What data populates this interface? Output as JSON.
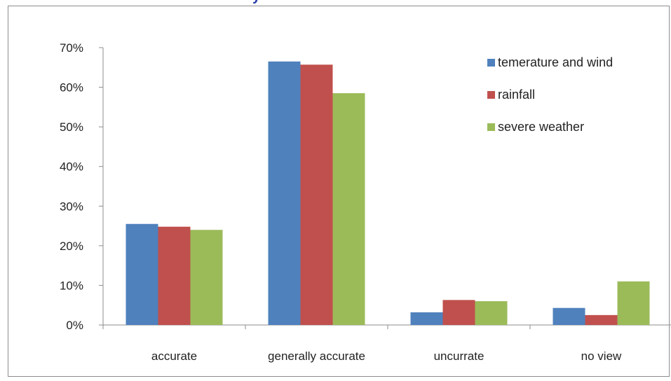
{
  "chart_data": {
    "type": "bar",
    "title": "",
    "xlabel": "",
    "ylabel": "",
    "categories": [
      "accurate",
      "generally accurate",
      "uncurrate",
      "no  view"
    ],
    "series": [
      {
        "name": "temerature and wind",
        "color": "#4f81bd",
        "values": [
          25.5,
          66.5,
          3.2,
          4.3
        ]
      },
      {
        "name": "rainfall",
        "color": "#c0504d",
        "values": [
          24.8,
          65.7,
          6.3,
          2.5
        ]
      },
      {
        "name": "severe weather",
        "color": "#9bbb59",
        "values": [
          24.0,
          58.5,
          6.0,
          11.0
        ]
      }
    ],
    "ylim": [
      0,
      70
    ],
    "yticks": [
      "0%",
      "10%",
      "20%",
      "30%",
      "40%",
      "50%",
      "60%",
      "70%"
    ],
    "grid": false,
    "legend_position": "top-right"
  },
  "title_fragment": "y"
}
